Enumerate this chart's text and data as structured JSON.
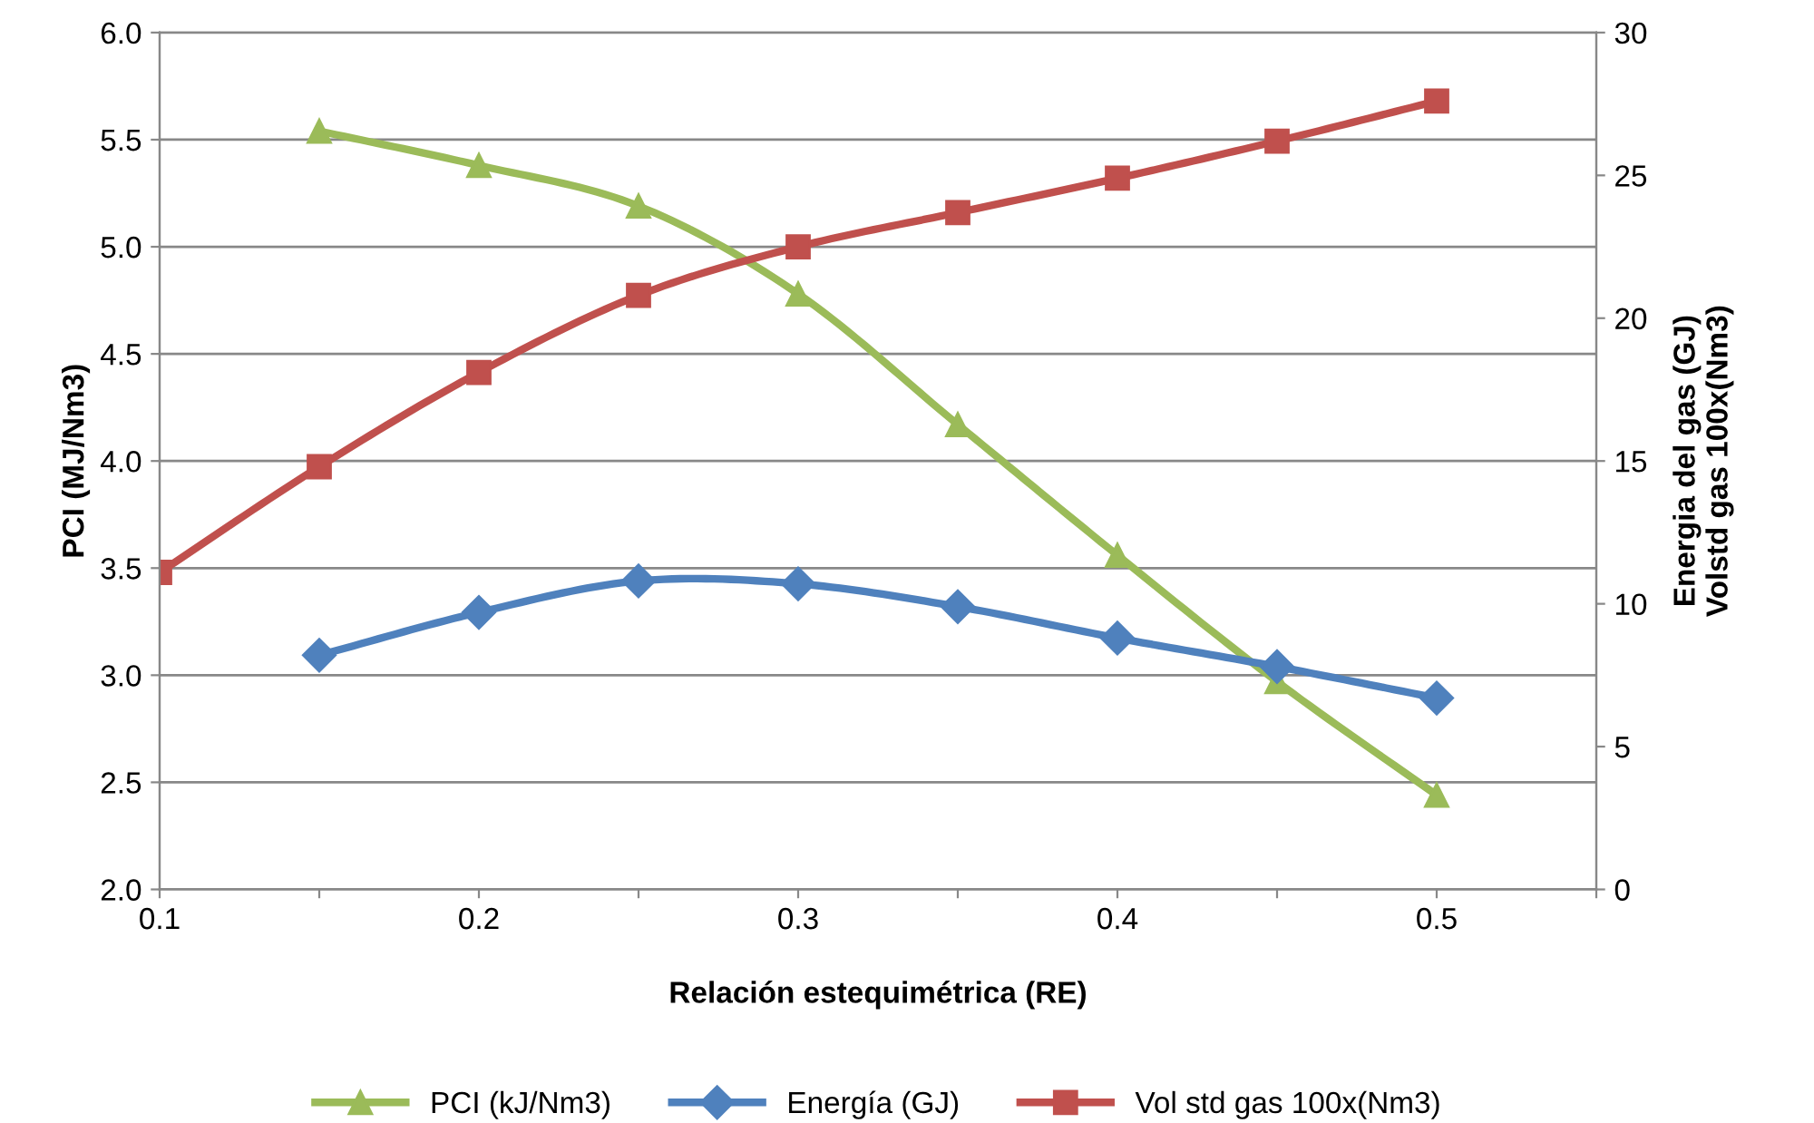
{
  "chart_data": {
    "type": "line",
    "xlabel": "Relación estequimétrica (RE)",
    "ylabel": "PCI (MJ/Nm3)",
    "y2label": "Energia del gas (GJ)\nVolstd gas 100x(Nm3)",
    "xlim": [
      0.1,
      0.55
    ],
    "xticks": [
      0.1,
      {
        "value": 0.15,
        "label": null
      },
      0.2,
      {
        "value": 0.25,
        "label": null
      },
      0.3,
      {
        "value": 0.35,
        "label": null
      },
      0.4,
      {
        "value": 0.45,
        "label": null
      },
      0.5,
      {
        "value": 0.55,
        "label": null
      }
    ],
    "ylim": [
      2.0,
      6.0
    ],
    "yticks": [
      {
        "value": 2.0,
        "label": "2.0"
      },
      {
        "value": 2.5,
        "label": "2.5"
      },
      {
        "value": 3.0,
        "label": "3.0"
      },
      {
        "value": 3.5,
        "label": "3.5"
      },
      {
        "value": 4.0,
        "label": "4.0"
      },
      {
        "value": 4.5,
        "label": "4.5"
      },
      {
        "value": 5.0,
        "label": "5.0"
      },
      {
        "value": 5.5,
        "label": "5.5"
      },
      {
        "value": 6.0,
        "label": "6.0"
      }
    ],
    "y2lim": [
      0,
      30
    ],
    "y2ticks": [
      0,
      5,
      10,
      15,
      20,
      25,
      30
    ],
    "grid": "y",
    "legend": "bottom",
    "line_style": "solid",
    "series": [
      {
        "name": "PCI (kJ/Nm3)",
        "color": "#9bbb59",
        "marker": "triangle",
        "x": [
          0.15,
          0.2,
          0.25,
          0.3,
          0.35,
          0.4,
          0.45,
          0.5
        ],
        "values": [
          5.54,
          5.38,
          5.19,
          4.78,
          4.17,
          3.56,
          2.97,
          2.44
        ]
      },
      {
        "name": "Energía (GJ)",
        "color": "#4f81bd",
        "marker": "diamond",
        "axis": "y2",
        "x": [
          0.15,
          0.2,
          0.25,
          0.3,
          0.35,
          0.4,
          0.45,
          0.5
        ],
        "values": [
          8.2,
          9.7,
          10.8,
          10.7,
          9.9,
          8.8,
          7.8,
          6.7
        ]
      },
      {
        "name": "Vol std gas 100x(Nm3)",
        "color": "#c0504d",
        "marker": "square",
        "axis": "y2",
        "x": [
          0.1,
          0.15,
          0.2,
          0.25,
          0.3,
          0.35,
          0.4,
          0.45,
          0.5
        ],
        "values": [
          11.1,
          14.8,
          18.1,
          20.8,
          22.5,
          23.7,
          24.9,
          26.2,
          27.6
        ]
      }
    ]
  }
}
